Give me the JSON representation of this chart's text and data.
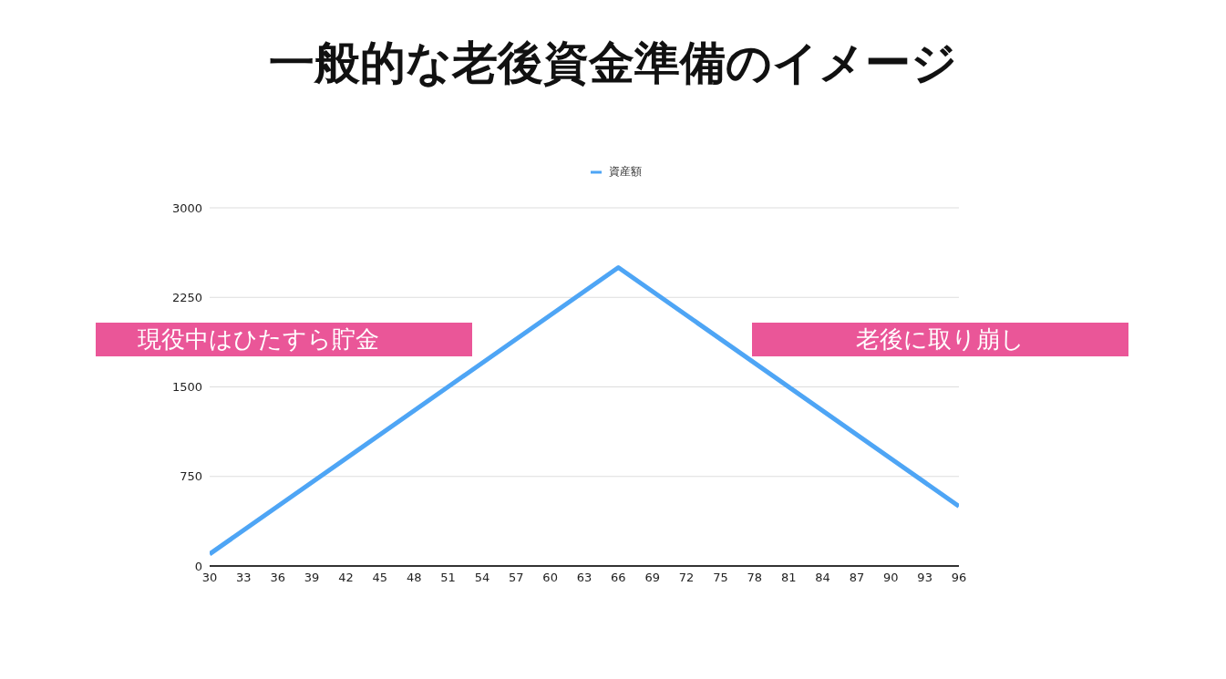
{
  "chart_data": {
    "type": "line",
    "title": "一般的な老後資金準備のイメージ",
    "x": [
      30,
      66,
      96
    ],
    "series": [
      {
        "name": "資産額",
        "color": "#4ea5f5",
        "values": [
          100,
          2500,
          500
        ]
      }
    ],
    "xlim": [
      30,
      96
    ],
    "xticks": [
      30,
      33,
      36,
      39,
      42,
      45,
      48,
      51,
      54,
      57,
      60,
      63,
      66,
      69,
      72,
      75,
      78,
      81,
      84,
      87,
      90,
      93,
      96
    ],
    "ylim": [
      0,
      3000
    ],
    "yticks": [
      0,
      750,
      1500,
      2250,
      3000
    ],
    "grid": "y",
    "legend": "top",
    "marker": "none",
    "line_style": "solid",
    "annotations": [
      "現役中はひたすら貯金",
      "老後に取り崩し"
    ]
  }
}
